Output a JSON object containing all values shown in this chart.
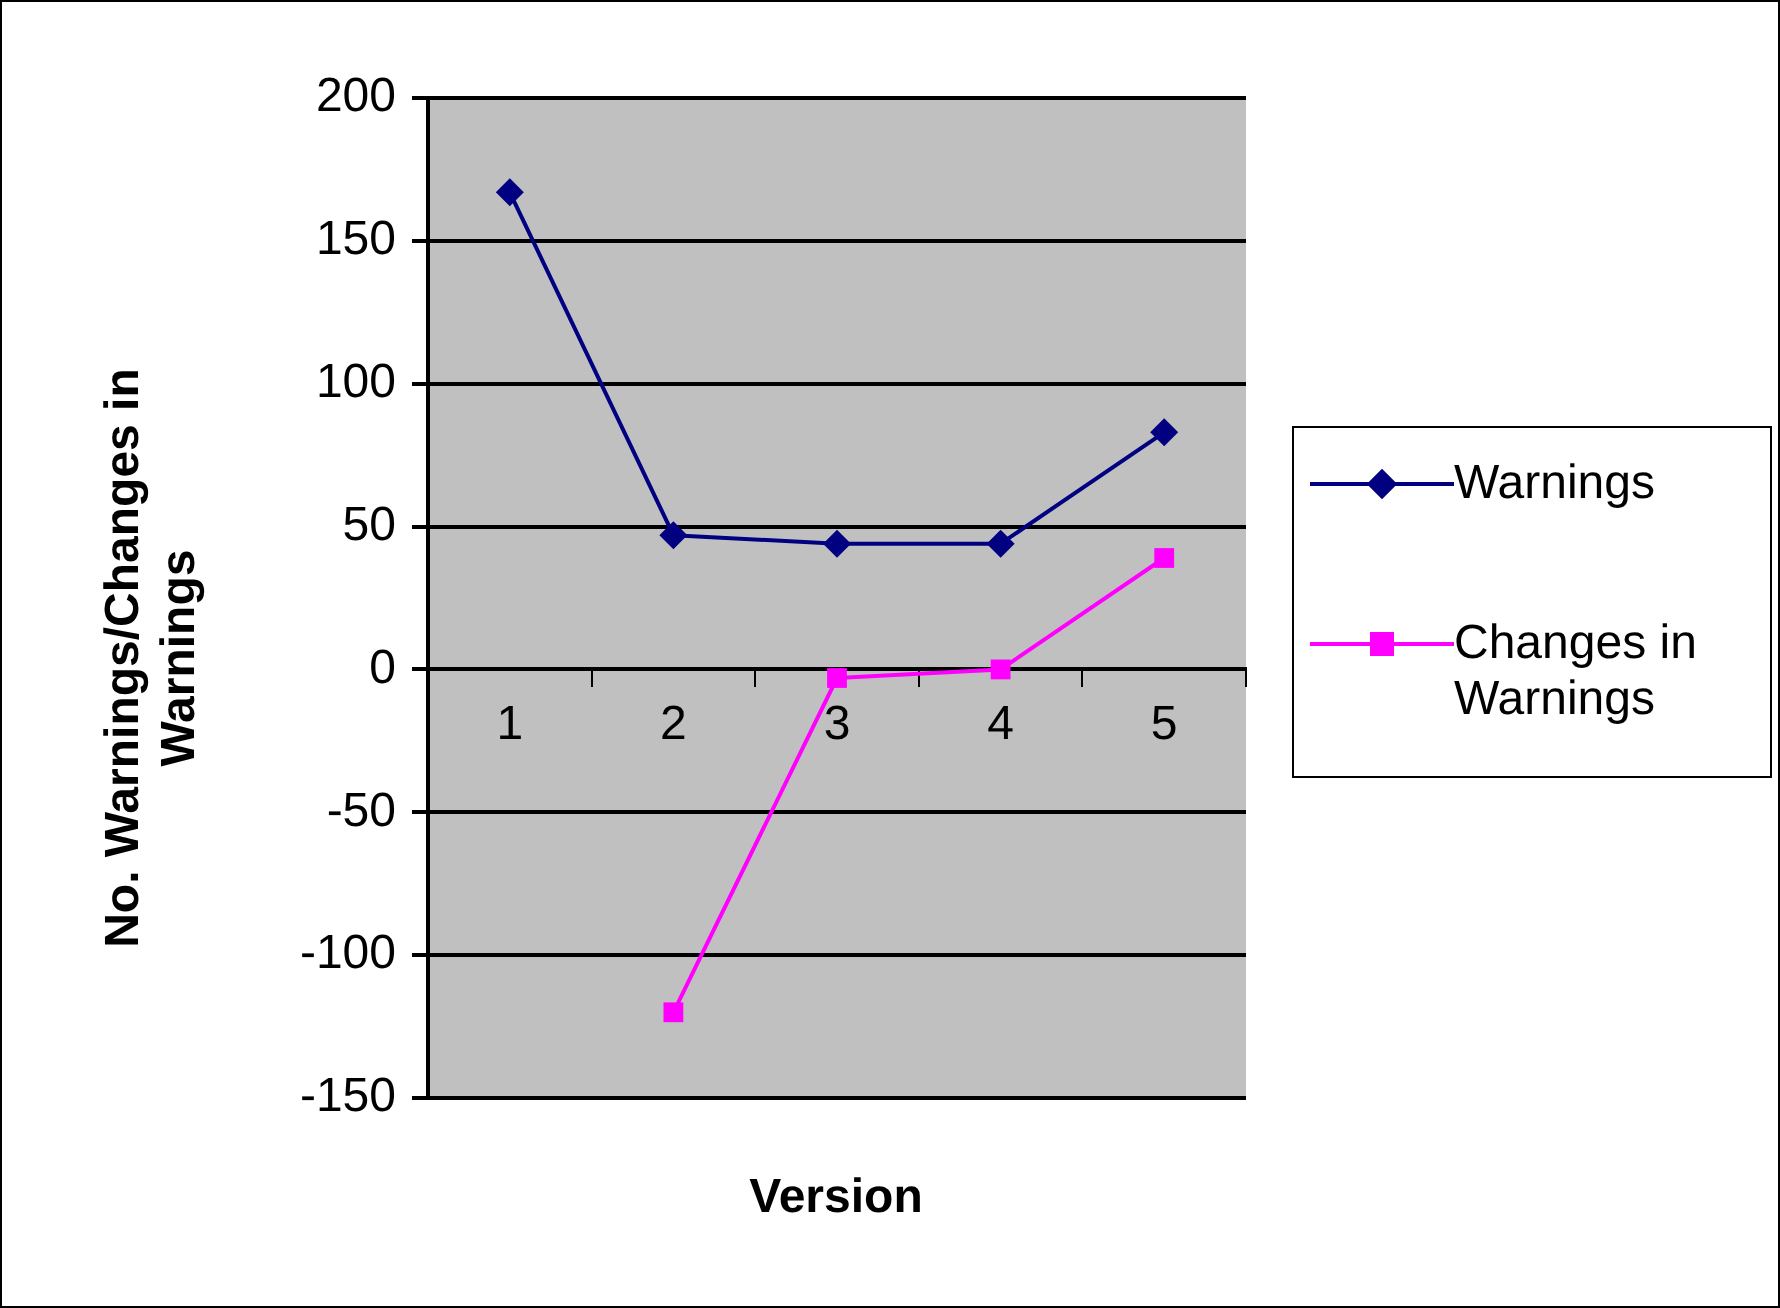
{
  "chart_data": {
    "type": "line",
    "xlabel": "Version",
    "ylabel": "No. Warnings/Changes in Warnings",
    "categories": [
      "1",
      "2",
      "3",
      "4",
      "5"
    ],
    "series": [
      {
        "name": "Warnings",
        "color": "#000080",
        "marker": "diamond",
        "values": [
          167,
          47,
          44,
          44,
          83
        ]
      },
      {
        "name": "Changes in Warnings",
        "color": "#ff00ff",
        "marker": "square",
        "values": [
          null,
          -120,
          -3,
          0,
          39
        ]
      }
    ],
    "ylim": [
      -150,
      200
    ],
    "yticks": [
      -150,
      -100,
      -50,
      0,
      50,
      100,
      150,
      200
    ],
    "grid": "y",
    "legend": "right"
  }
}
